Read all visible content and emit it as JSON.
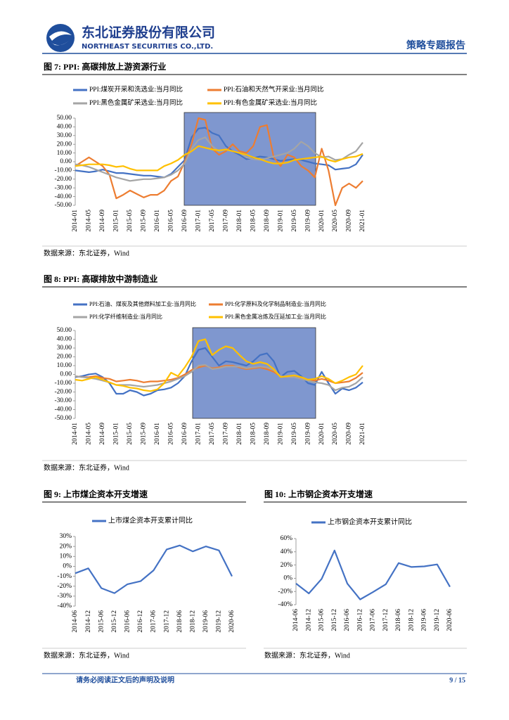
{
  "header": {
    "company": "东北证券股份有限公司",
    "company_en": "NORTHEAST SECURITIES CO.,LTD.",
    "report_type": "策略专题报告"
  },
  "chart_data": [
    {
      "type": "line",
      "title": "图 7: PPI: 高碳排放上游资源行业",
      "source": "数据来源：东北证券，Wind",
      "categories": [
        "2014-01",
        null,
        "2014-05",
        null,
        "2014-09",
        null,
        "2015-01",
        null,
        "2015-05",
        null,
        "2015-09",
        null,
        "2016-01",
        null,
        "2016-05",
        null,
        "2016-09",
        null,
        "2017-01",
        null,
        "2017-05",
        null,
        "2017-09",
        null,
        "2018-01",
        null,
        "2018-05",
        null,
        "2018-09",
        null,
        "2019-01",
        null,
        "2019-05",
        null,
        "2019-09",
        null,
        "2020-01",
        null,
        "2020-05",
        null,
        "2020-09",
        null,
        "2021-01"
      ],
      "series": [
        {
          "name": "PPI:煤炭开采和洗选业:当月同比",
          "color": "#4472c4",
          "values": [
            -10,
            -11,
            -12,
            -11,
            -9,
            -11,
            -13,
            -13,
            -14,
            -15,
            -16,
            -16,
            -17,
            -18,
            -14,
            -6,
            2,
            28,
            38,
            39,
            33,
            30,
            18,
            12,
            8,
            3,
            4,
            6,
            5,
            3,
            1,
            2,
            3,
            2,
            0,
            -2,
            -3,
            -4,
            -9,
            -8,
            -7,
            -3,
            8
          ]
        },
        {
          "name": "PPI:石油和天然气开采业:当月同比",
          "color": "#ed7d31",
          "values": [
            -5,
            0,
            5,
            0,
            -5,
            -15,
            -42,
            -38,
            -33,
            -37,
            -41,
            -38,
            -38,
            -33,
            -22,
            -17,
            0,
            20,
            50,
            48,
            15,
            8,
            12,
            20,
            12,
            10,
            18,
            40,
            42,
            5,
            -5,
            8,
            5,
            -5,
            -10,
            -18,
            15,
            -10,
            -50,
            -30,
            -25,
            -30,
            -22
          ]
        },
        {
          "name": "PPI:黑色金属矿采选业:当月同比",
          "color": "#a5a5a5",
          "values": [
            -3,
            -4,
            -6,
            -9,
            -12,
            -15,
            -18,
            -20,
            -22,
            -21,
            -20,
            -20,
            -19,
            -18,
            -15,
            -10,
            -2,
            15,
            25,
            28,
            18,
            12,
            14,
            12,
            10,
            5,
            3,
            2,
            4,
            6,
            8,
            10,
            15,
            23,
            18,
            10,
            5,
            6,
            2,
            3,
            8,
            12,
            22
          ]
        },
        {
          "name": "PPI:有色金属矿采选业:当月同比",
          "color": "#ffc000",
          "values": [
            -5,
            -4,
            -3,
            -3,
            -3,
            -4,
            -6,
            -5,
            -8,
            -10,
            -10,
            -10,
            -10,
            -5,
            -2,
            2,
            8,
            12,
            18,
            16,
            14,
            13,
            14,
            12,
            10,
            8,
            5,
            3,
            0,
            -2,
            -2,
            -1,
            2,
            3,
            4,
            5,
            6,
            2,
            0,
            3,
            5,
            6,
            9
          ]
        }
      ],
      "ylim": [
        -50,
        50
      ],
      "yticks": [
        {
          "value": 50,
          "label": "50.00"
        },
        {
          "value": 40,
          "label": "40.00"
        },
        {
          "value": 30,
          "label": "30.00"
        },
        {
          "value": 20,
          "label": "20.00"
        },
        {
          "value": 10,
          "label": "10.00"
        },
        {
          "value": 0,
          "label": "0.00"
        },
        {
          "value": -10,
          "label": "-10.00"
        },
        {
          "value": -20,
          "label": "-20.00"
        },
        {
          "value": -30,
          "label": "-30.00"
        },
        {
          "value": -40,
          "label": "-40.00"
        },
        {
          "value": -50,
          "label": "-50.00"
        }
      ]
    },
    {
      "type": "line",
      "title": "图 8: PPI: 高碳排放中游制造业",
      "source": "数据来源：东北证券，Wind",
      "categories": [
        "2014-01",
        null,
        "2014-05",
        null,
        "2014-09",
        null,
        "2015-01",
        null,
        "2015-05",
        null,
        "2015-09",
        null,
        "2016-01",
        null,
        "2016-05",
        null,
        "2016-09",
        null,
        "2017-01",
        null,
        "2017-05",
        null,
        "2017-09",
        null,
        "2018-01",
        null,
        "2018-05",
        null,
        "2018-09",
        null,
        "2019-01",
        null,
        "2019-05",
        null,
        "2019-09",
        null,
        "2020-01",
        null,
        "2020-05",
        null,
        "2020-09",
        null,
        "2021-01"
      ],
      "series": [
        {
          "name": "PPI:石油、煤炭及其他燃料加工业:当月同比",
          "color": "#4472c4",
          "values": [
            -3,
            -2,
            0,
            1,
            -3,
            -10,
            -22,
            -22,
            -18,
            -20,
            -24,
            -22,
            -18,
            -17,
            -15,
            -10,
            -2,
            15,
            28,
            30,
            20,
            10,
            15,
            14,
            12,
            10,
            15,
            22,
            24,
            15,
            -3,
            3,
            4,
            -2,
            -10,
            -12,
            3,
            -10,
            -22,
            -16,
            -18,
            -15,
            -9
          ]
        },
        {
          "name": "PPI:化学原料及化学制品制造业:当月同比",
          "color": "#ed7d31",
          "values": [
            -2,
            -3,
            -3,
            -2,
            -4,
            -5,
            -8,
            -7,
            -6,
            -7,
            -9,
            -8,
            -8,
            -7,
            -6,
            -4,
            0,
            5,
            8,
            10,
            7,
            8,
            10,
            10,
            8,
            6,
            7,
            8,
            6,
            3,
            -2,
            -3,
            -2,
            -4,
            -6,
            -7,
            -5,
            -7,
            -10,
            -9,
            -8,
            -4,
            2
          ]
        },
        {
          "name": "PPI:化学纤维制造业:当月同比",
          "color": "#a5a5a5",
          "values": [
            -2,
            -3,
            -4,
            -5,
            -7,
            -9,
            -12,
            -12,
            -12,
            -13,
            -14,
            -13,
            -12,
            -10,
            -8,
            -5,
            -2,
            3,
            10,
            11,
            6,
            7,
            9,
            9,
            9,
            7,
            8,
            9,
            8,
            5,
            -2,
            -3,
            -3,
            -5,
            -7,
            -9,
            -10,
            -12,
            -18,
            -15,
            -14,
            -10,
            -3
          ]
        },
        {
          "name": "PPI:黑色金属冶炼及压延加工业:当月同比",
          "color": "#ffc000",
          "values": [
            -6,
            -7,
            -5,
            -3,
            -6,
            -9,
            -12,
            -13,
            -15,
            -16,
            -18,
            -19,
            -17,
            -10,
            2,
            -2,
            8,
            20,
            38,
            40,
            22,
            28,
            32,
            30,
            22,
            15,
            12,
            14,
            12,
            6,
            -3,
            -2,
            -1,
            -3,
            -6,
            -5,
            -2,
            -5,
            -10,
            -7,
            -3,
            0,
            10
          ]
        }
      ],
      "ylim": [
        -50,
        50
      ],
      "yticks": [
        {
          "value": 50,
          "label": "50.00"
        },
        {
          "value": 40,
          "label": "40.00"
        },
        {
          "value": 30,
          "label": "30.00"
        },
        {
          "value": 20,
          "label": "20.00"
        },
        {
          "value": 10,
          "label": "10.00"
        },
        {
          "value": 0,
          "label": "0.00"
        },
        {
          "value": -10,
          "label": "-10.00"
        },
        {
          "value": -20,
          "label": "-20.00"
        },
        {
          "value": -30,
          "label": "-30.00"
        },
        {
          "value": -40,
          "label": "-40.00"
        },
        {
          "value": -50,
          "label": "-50.00"
        }
      ]
    },
    {
      "type": "line",
      "title": "图 9: 上市煤企资本开支增速",
      "source": "数据来源：东北证券，Wind",
      "categories": [
        "2014-06",
        "2014-12",
        "2015-06",
        "2015-12",
        "2016-06",
        "2016-12",
        "2017-06",
        "2017-12",
        "2018-06",
        "2018-12",
        "2019-06",
        "2019-12",
        "2020-06"
      ],
      "series": [
        {
          "name": "上市煤企资本开支累计同比",
          "color": "#4472c4",
          "values": [
            -7,
            -2,
            -22,
            -27,
            -18,
            -15,
            -4,
            17,
            21,
            15,
            20,
            16,
            -10
          ]
        }
      ],
      "ylim": [
        -40,
        30
      ],
      "yticks": [
        {
          "value": 30,
          "label": "30%"
        },
        {
          "value": 20,
          "label": "20%"
        },
        {
          "value": 10,
          "label": "10%"
        },
        {
          "value": 0,
          "label": "0%"
        },
        {
          "value": -10,
          "label": "-10%"
        },
        {
          "value": -20,
          "label": "-20%"
        },
        {
          "value": -30,
          "label": "-30%"
        },
        {
          "value": -40,
          "label": "-40%"
        }
      ]
    },
    {
      "type": "line",
      "title": "图 10: 上市钢企资本开支增速",
      "source": "数据来源：东北证券，Wind",
      "categories": [
        "2014-06",
        "2014-12",
        "2015-06",
        "2015-12",
        "2016-06",
        "2016-12",
        "2017-06",
        "2017-12",
        "2018-06",
        "2018-12",
        "2019-06",
        "2019-12",
        "2020-06"
      ],
      "series": [
        {
          "name": "上市钢企资本开支累计同比",
          "color": "#4472c4",
          "values": [
            -8,
            -23,
            -1,
            42,
            -8,
            -32,
            -21,
            -9,
            23,
            17,
            18,
            21,
            -13
          ]
        }
      ],
      "ylim": [
        -40,
        60
      ],
      "yticks": [
        {
          "value": 60,
          "label": "60%"
        },
        {
          "value": 40,
          "label": "40%"
        },
        {
          "value": 20,
          "label": "20%"
        },
        {
          "value": 0,
          "label": "0%"
        },
        {
          "value": -20,
          "label": "-20%"
        },
        {
          "value": -40,
          "label": "-40%"
        }
      ]
    }
  ],
  "footer": {
    "disclaimer": "请务必阅读正文后的声明及说明",
    "page": "9 / 15"
  }
}
